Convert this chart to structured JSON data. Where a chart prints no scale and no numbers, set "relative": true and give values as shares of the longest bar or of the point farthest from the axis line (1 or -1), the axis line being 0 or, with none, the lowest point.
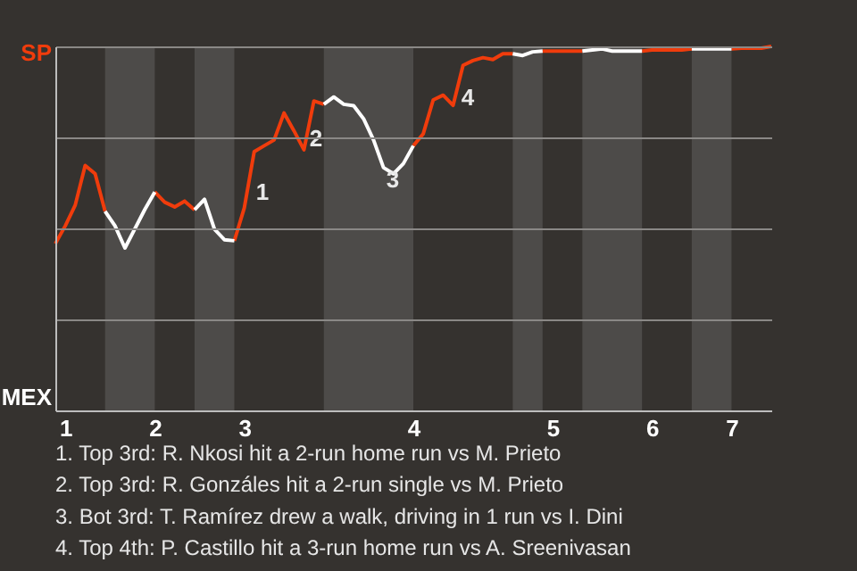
{
  "chart_data": {
    "type": "line",
    "relative": true,
    "categories": [
      null,
      "1",
      null,
      null,
      null,
      null,
      null,
      null,
      null,
      null,
      "2",
      null,
      null,
      null,
      null,
      null,
      null,
      null,
      null,
      "3",
      null,
      null,
      null,
      null,
      null,
      null,
      null,
      null,
      null,
      null,
      null,
      null,
      null,
      null,
      null,
      null,
      "4",
      null,
      null,
      null,
      null,
      null,
      null,
      null,
      null,
      null,
      null,
      null,
      null,
      null,
      "5",
      null,
      null,
      null,
      null,
      null,
      null,
      null,
      null,
      null,
      "6",
      null,
      null,
      null,
      null,
      null,
      null,
      null,
      "7",
      null,
      null,
      null,
      null
    ],
    "series": [
      {
        "color": "#f03c0c",
        "values": [
          0.458,
          0.507,
          0.564,
          0.673,
          0.65,
          0.547,
          null,
          null,
          null,
          null,
          0.6,
          0.572,
          0.559,
          0.575,
          0.551,
          null,
          null,
          null,
          0.466,
          0.556,
          0.711,
          0.727,
          0.743,
          0.817,
          0.768,
          0.716,
          0.85,
          0.841,
          null,
          null,
          null,
          null,
          null,
          null,
          null,
          null,
          0.727,
          0.76,
          0.853,
          0.866,
          0.838,
          0.948,
          0.961,
          0.969,
          0.964,
          0.98,
          0.98,
          null,
          null,
          0.987,
          0.987,
          0.987,
          0.987,
          0.987,
          null,
          null,
          null,
          null,
          null,
          0.987,
          0.99,
          0.99,
          0.99,
          0.99,
          0.993,
          null,
          null,
          null,
          0.993,
          0.995,
          0.995,
          0.995,
          1.0
        ]
      },
      {
        "color": "#ffffff",
        "values": [
          null,
          null,
          null,
          null,
          null,
          0.547,
          0.507,
          0.446,
          0.499,
          0.552,
          0.6,
          null,
          null,
          null,
          0.551,
          0.58,
          0.498,
          0.469,
          0.466,
          null,
          null,
          null,
          null,
          null,
          null,
          null,
          null,
          0.841,
          0.861,
          0.841,
          0.837,
          0.801,
          0.743,
          0.667,
          0.65,
          0.678,
          0.727,
          null,
          null,
          null,
          null,
          null,
          null,
          null,
          null,
          null,
          0.98,
          0.975,
          0.985,
          0.987,
          null,
          null,
          null,
          0.987,
          0.99,
          0.993,
          0.987,
          0.987,
          0.987,
          0.987,
          null,
          null,
          null,
          null,
          0.993,
          0.993,
          0.993,
          0.993,
          0.993,
          null,
          null,
          null,
          null
        ]
      }
    ],
    "grid": "y",
    "marker": "none",
    "line_style": "solid",
    "annotations": [
      "SP",
      "MEX",
      "1",
      "2",
      "3",
      "4",
      "1. Top 3rd: R. Nkosi hit a 2-run home run vs M. Prieto",
      "2. Top 3rd: R. Gonzáles hit a 2-run single vs M. Prieto",
      "3. Bot 3rd: T. Ramírez drew a walk, driving in 1 run vs I. Dini",
      "4. Top 4th: P. Castillo hit a 3-run home run vs A. Sreenivasan"
    ]
  }
}
